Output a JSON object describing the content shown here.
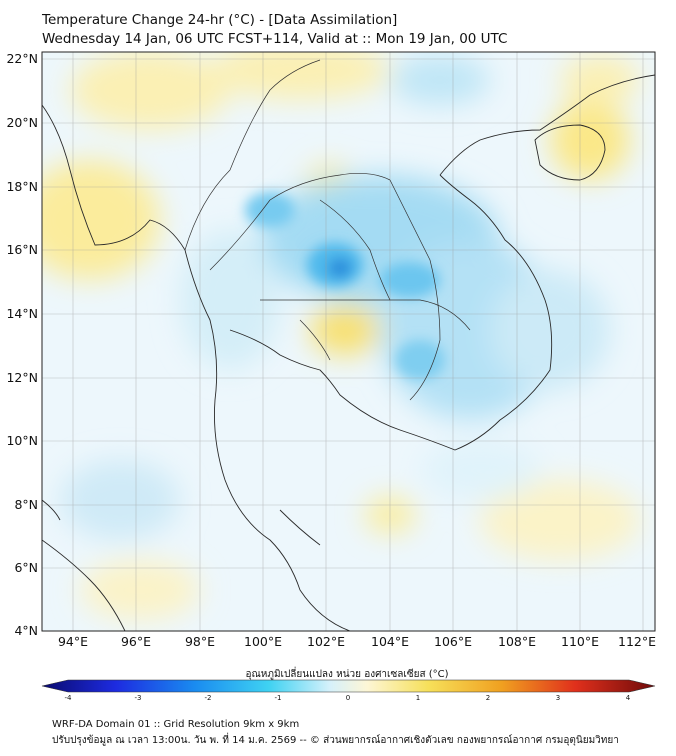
{
  "title": {
    "line1": "Temperature Change 24-hr (°C) - [Data Assimilation]",
    "line2": "Wednesday 14 Jan, 06 UTC FCST+114, Valid at :: Mon 19 Jan, 00 UTC"
  },
  "axes": {
    "lat_labels": [
      "22°N",
      "20°N",
      "18°N",
      "16°N",
      "14°N",
      "12°N",
      "10°N",
      "8°N",
      "6°N",
      "4°N"
    ],
    "lon_labels": [
      "94°E",
      "96°E",
      "98°E",
      "100°E",
      "102°E",
      "104°E",
      "106°E",
      "108°E",
      "110°E",
      "112°E"
    ]
  },
  "colorbar": {
    "title": "อุณหภูมิเปลี่ยนแปลง หน่วย องศาเซลเซียส (°C)",
    "ticks": [
      "-4",
      "-3",
      "-2",
      "-1",
      "0",
      "1",
      "2",
      "3",
      "4"
    ]
  },
  "footer": {
    "line1": "WRF-DA Domain 01 :: Grid Resolution 9km x 9km",
    "line2": "ปรับปรุงข้อมูล ณ เวลา 13:00น. วัน พ. ที่ 14 ม.ค. 2569 -- © ส่วนพยากรณ์อากาศเชิงตัวเลข กองพยากรณ์อากาศ กรมอุตุนิยมวิทยา"
  },
  "colors": {
    "frame": "#222222",
    "coast": "#2a2a2a"
  }
}
